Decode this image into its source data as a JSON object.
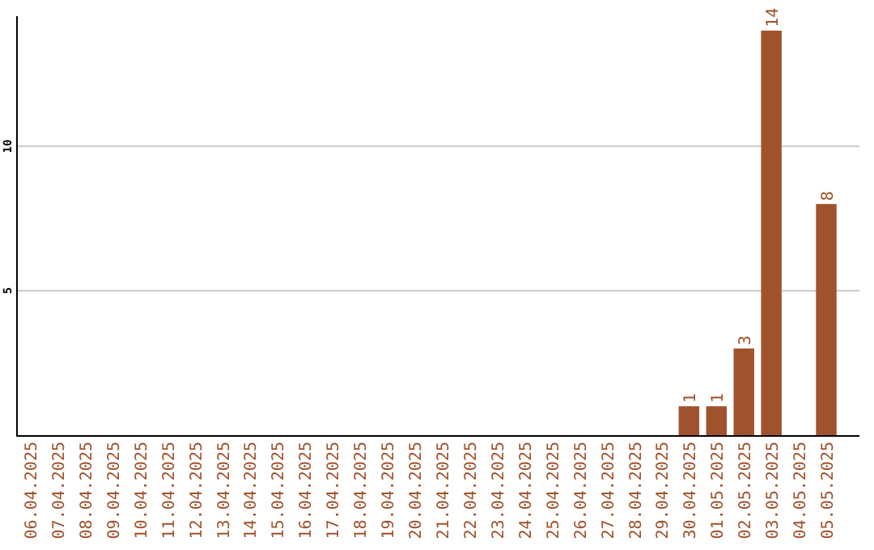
{
  "chart_data": {
    "type": "bar",
    "categories": [
      "06.04.2025",
      "07.04.2025",
      "08.04.2025",
      "09.04.2025",
      "10.04.2025",
      "11.04.2025",
      "12.04.2025",
      "13.04.2025",
      "14.04.2025",
      "15.04.2025",
      "16.04.2025",
      "17.04.2025",
      "18.04.2025",
      "19.04.2025",
      "20.04.2025",
      "21.04.2025",
      "22.04.2025",
      "23.04.2025",
      "24.04.2025",
      "25.04.2025",
      "26.04.2025",
      "27.04.2025",
      "28.04.2025",
      "29.04.2025",
      "30.04.2025",
      "01.05.2025",
      "02.05.2025",
      "03.05.2025",
      "04.05.2025",
      "05.05.2025"
    ],
    "values": [
      0,
      0,
      0,
      0,
      0,
      0,
      0,
      0,
      0,
      0,
      0,
      0,
      0,
      0,
      0,
      0,
      0,
      0,
      0,
      0,
      0,
      0,
      0,
      0,
      1,
      1,
      3,
      14,
      0,
      8
    ],
    "value_labels": [
      null,
      null,
      null,
      null,
      null,
      null,
      null,
      null,
      null,
      null,
      null,
      null,
      null,
      null,
      null,
      null,
      null,
      null,
      null,
      null,
      null,
      null,
      null,
      null,
      "1",
      "1",
      "3",
      "14",
      null,
      "8"
    ],
    "color": "#a0522d",
    "ylim": [
      0,
      14.5
    ],
    "yticks": [
      5,
      10
    ],
    "grid": "y"
  }
}
